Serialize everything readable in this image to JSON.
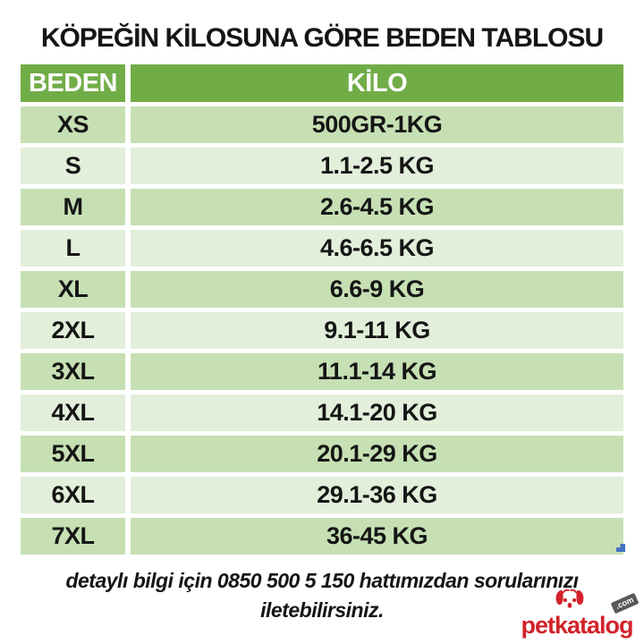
{
  "title": "KÖPEĞİN KİLOSUNA GÖRE BEDEN TABLOSU",
  "table": {
    "headers": [
      "BEDEN",
      "KİLO"
    ],
    "rows": [
      {
        "beden": "XS",
        "kilo": "500GR-1KG"
      },
      {
        "beden": "S",
        "kilo": "1.1-2.5 KG"
      },
      {
        "beden": "M",
        "kilo": "2.6-4.5 KG"
      },
      {
        "beden": "L",
        "kilo": "4.6-6.5 KG"
      },
      {
        "beden": "XL",
        "kilo": "6.6-9 KG"
      },
      {
        "beden": "2XL",
        "kilo": "9.1-11 KG"
      },
      {
        "beden": "3XL",
        "kilo": "11.1-14 KG"
      },
      {
        "beden": "4XL",
        "kilo": "14.1-20 KG"
      },
      {
        "beden": "5XL",
        "kilo": "20.1-29 KG"
      },
      {
        "beden": "6XL",
        "kilo": "29.1-36 KG"
      },
      {
        "beden": "7XL",
        "kilo": "36-45 KG"
      }
    ]
  },
  "footer": {
    "line1": "detaylı bilgi için 0850 500 5 150 hattımızdan sorularınızı",
    "line2": "iletebilirsiniz."
  },
  "logo": {
    "brand": "petkatalog",
    "tld": ".com"
  },
  "colors": {
    "header_green": "#71AD47",
    "row_dark_green": "#C6E0B4",
    "row_light_green": "#E2EFDA",
    "brand_red": "#D2232A",
    "handle_blue": "#4472C4"
  }
}
